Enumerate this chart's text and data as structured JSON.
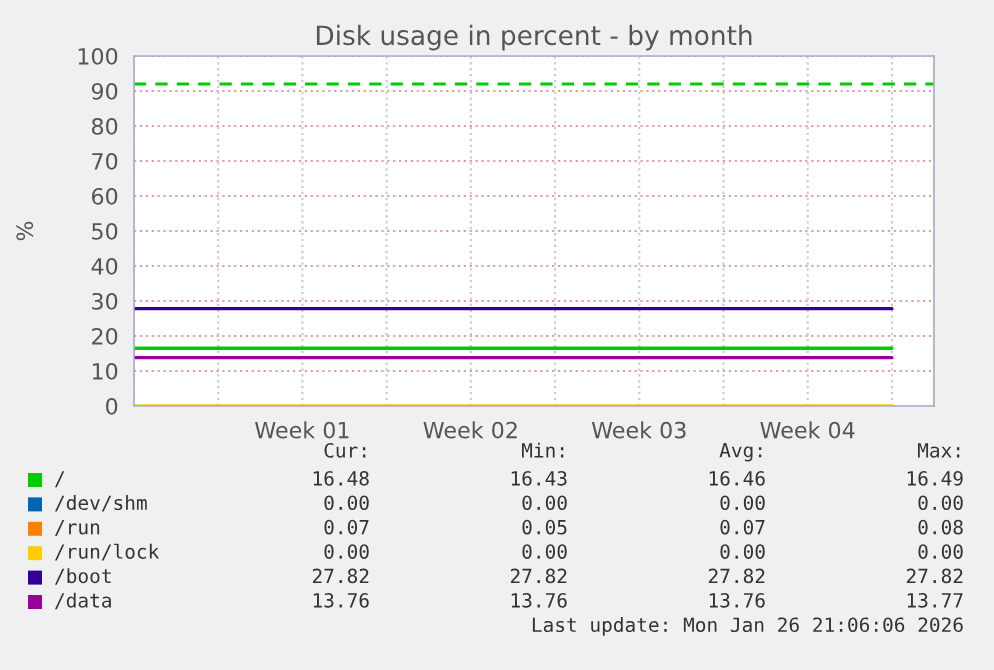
{
  "chart_data": {
    "type": "line",
    "title": "Disk usage in percent - by month",
    "ylabel": "%",
    "categories": [
      null,
      null,
      "Week 01",
      null,
      "Week 02",
      null,
      "Week 03",
      null,
      "Week 04",
      null
    ],
    "ylim": [
      0,
      100
    ],
    "yticks": [
      0,
      10,
      20,
      30,
      40,
      50,
      60,
      70,
      80,
      90,
      100
    ],
    "grid": true,
    "legend": "bottom",
    "series": [
      {
        "name": "/",
        "color": "#00cc00",
        "values": [
          16.5,
          16.5,
          16.5,
          16.5,
          16.5,
          16.5,
          16.5,
          16.5,
          16.5,
          16.5
        ]
      },
      {
        "name": "/dev/shm",
        "color": "#0066b3",
        "values": [
          null,
          null,
          null,
          null,
          null,
          null,
          null,
          null,
          null,
          null
        ]
      },
      {
        "name": "/run",
        "color": "#ff8000",
        "values": [
          null,
          null,
          null,
          null,
          null,
          null,
          null,
          null,
          null,
          null
        ]
      },
      {
        "name": "/run/lock",
        "color": "#ffcc00",
        "values": [
          0,
          0,
          0,
          0,
          0,
          0,
          0,
          0,
          0,
          0
        ]
      },
      {
        "name": "/boot",
        "color": "#330099",
        "values": [
          27.8,
          27.8,
          27.8,
          27.8,
          27.8,
          27.8,
          27.8,
          27.8,
          27.8,
          27.8
        ]
      },
      {
        "name": "/data",
        "color": "#990099",
        "values": [
          13.8,
          13.8,
          13.8,
          13.8,
          13.8,
          13.8,
          13.8,
          13.8,
          13.8,
          13.8
        ]
      }
    ],
    "ref_lines": [
      {
        "axis": "y",
        "value": 92,
        "label": null,
        "color": "#00cc00",
        "line_style": "dashed"
      }
    ],
    "annotations": [
      "Cur:",
      "Min:",
      "Avg:",
      "Max:",
      "16.48",
      "16.43",
      "16.46",
      "16.49",
      "0.00",
      "0.00",
      "0.00",
      "0.00",
      "0.07",
      "0.05",
      "0.07",
      "0.08",
      "0.00",
      "0.00",
      "0.00",
      "0.00",
      "27.82",
      "27.82",
      "27.82",
      "27.82",
      "13.76",
      "13.76",
      "13.76",
      "13.77",
      "Last update: Mon Jan 26 21:06:06 2026"
    ]
  }
}
